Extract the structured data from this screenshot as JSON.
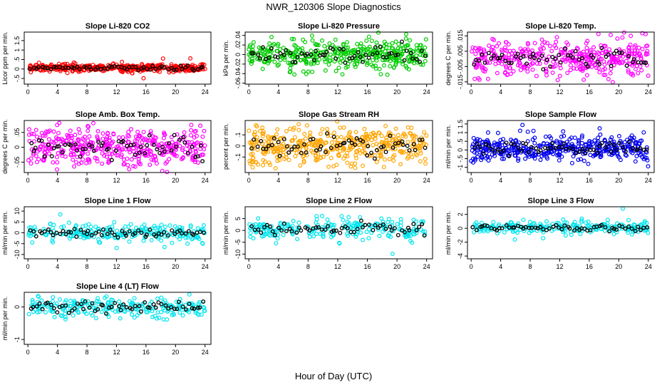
{
  "figure": {
    "title": "NWR_120306  Slope Diagnostics",
    "xlabel": "Hour of Day (UTC)"
  },
  "chart_data": [
    {
      "type": "scatter",
      "title": "Slope Li-820 CO2",
      "ylabel": "Licor ppm per min.",
      "color": "#ff0000",
      "xticks": [
        0,
        4,
        8,
        12,
        16,
        20,
        24
      ],
      "xlim": [
        -0.5,
        24.8
      ],
      "yticks": [
        -0.5,
        0,
        0.5,
        1,
        1.5
      ],
      "ylim": [
        -0.8,
        1.95
      ],
      "center": 0.05,
      "spread": 0.1,
      "count": 420,
      "highlight_count": 60
    },
    {
      "type": "scatter",
      "title": "Slope Li-820 Pressure",
      "ylabel": "kPa per min.",
      "color": "#00cc00",
      "xticks": [
        0,
        4,
        8,
        12,
        16,
        20,
        24
      ],
      "xlim": [
        -0.5,
        24.8
      ],
      "yticks": [
        -0.06,
        -0.04,
        -0.02,
        0,
        0.02,
        0.04
      ],
      "ylim": [
        -0.062,
        0.047
      ],
      "center": 0.0,
      "spread": 0.014,
      "count": 420,
      "highlight_count": 60
    },
    {
      "type": "scatter",
      "title": "Slope Li-820 Temp.",
      "ylabel": "degrees C per min.",
      "color": "#ff00ff",
      "xticks": [
        0,
        4,
        8,
        12,
        16,
        20,
        24
      ],
      "xlim": [
        -0.5,
        24.8
      ],
      "yticks": [
        -0.015,
        -0.005,
        0.005,
        0.015
      ],
      "ylim": [
        -0.0165,
        0.0175
      ],
      "center": 0.0,
      "spread": 0.006,
      "count": 420,
      "highlight_count": 60
    },
    {
      "type": "scatter",
      "title": "Slope Amb. Box Temp.",
      "ylabel": "degrees C per min.",
      "color": "#ff00ff",
      "xticks": [
        0,
        4,
        8,
        12,
        16,
        20,
        24
      ],
      "xlim": [
        -0.5,
        24.8
      ],
      "yticks": [
        -0.05,
        0,
        0.05
      ],
      "ylim": [
        -0.085,
        0.09
      ],
      "center": 0.0,
      "spread": 0.035,
      "count": 420,
      "highlight_count": 60
    },
    {
      "type": "scatter",
      "title": "Slope Gas Stream RH",
      "ylabel": "percent per min.",
      "color": "#ffa500",
      "xticks": [
        0,
        4,
        8,
        12,
        16,
        20,
        24
      ],
      "xlim": [
        -0.5,
        24.8
      ],
      "yticks": [
        -0.1,
        0,
        0.1
      ],
      "ylim": [
        -0.24,
        0.23
      ],
      "center": 0.0,
      "spread": 0.08,
      "count": 420,
      "highlight_count": 60
    },
    {
      "type": "scatter",
      "title": "Slope Sample Flow",
      "ylabel": "ml/min per min.",
      "color": "#0000ee",
      "xticks": [
        0,
        4,
        8,
        12,
        16,
        20,
        24
      ],
      "xlim": [
        -0.5,
        24.8
      ],
      "yticks": [
        -1,
        -0.5,
        0,
        0.5,
        1,
        1.5
      ],
      "ylim": [
        -1.3,
        1.7
      ],
      "center": 0.1,
      "spread": 0.35,
      "count": 420,
      "highlight_count": 60
    },
    {
      "type": "scatter",
      "title": "Slope Line 1 Flow",
      "ylabel": "ml/min per min.",
      "color": "#00e5ee",
      "xticks": [
        0,
        4,
        8,
        12,
        16,
        20,
        24
      ],
      "xlim": [
        -0.5,
        24.8
      ],
      "yticks": [
        -10,
        -5,
        0,
        5,
        10
      ],
      "ylim": [
        -12,
        12
      ],
      "center": 0.0,
      "spread": 1.8,
      "count": 240,
      "highlight_count": 60
    },
    {
      "type": "scatter",
      "title": "Slope Line 2 Flow",
      "ylabel": "ml/min per min.",
      "color": "#00e5ee",
      "xticks": [
        0,
        4,
        8,
        12,
        16,
        20,
        24
      ],
      "xlim": [
        -0.5,
        24.8
      ],
      "yticks": [
        -10,
        -5,
        0,
        5
      ],
      "ylim": [
        -12,
        10
      ],
      "center": 0.5,
      "spread": 2.2,
      "count": 240,
      "highlight_count": 60
    },
    {
      "type": "scatter",
      "title": "Slope Line 3 Flow",
      "ylabel": "ml/min per min.",
      "color": "#00e5ee",
      "xticks": [
        0,
        4,
        8,
        12,
        16,
        20,
        24
      ],
      "xlim": [
        -0.5,
        24.8
      ],
      "yticks": [
        -4,
        -2,
        0,
        2
      ],
      "ylim": [
        -4.4,
        3.1
      ],
      "center": 0.1,
      "spread": 0.4,
      "count": 240,
      "highlight_count": 60
    },
    {
      "type": "scatter",
      "title": "Slope Line 4 (LT) Flow",
      "ylabel": "ml/min per min.",
      "color": "#00e5ee",
      "xticks": [
        0,
        4,
        8,
        12,
        16,
        20,
        24
      ],
      "xlim": [
        -0.5,
        24.8
      ],
      "yticks": [
        -1.0,
        0.0
      ],
      "ylim": [
        -1.15,
        0.45
      ],
      "center": 0.0,
      "spread": 0.16,
      "count": 240,
      "highlight_count": 60
    }
  ]
}
